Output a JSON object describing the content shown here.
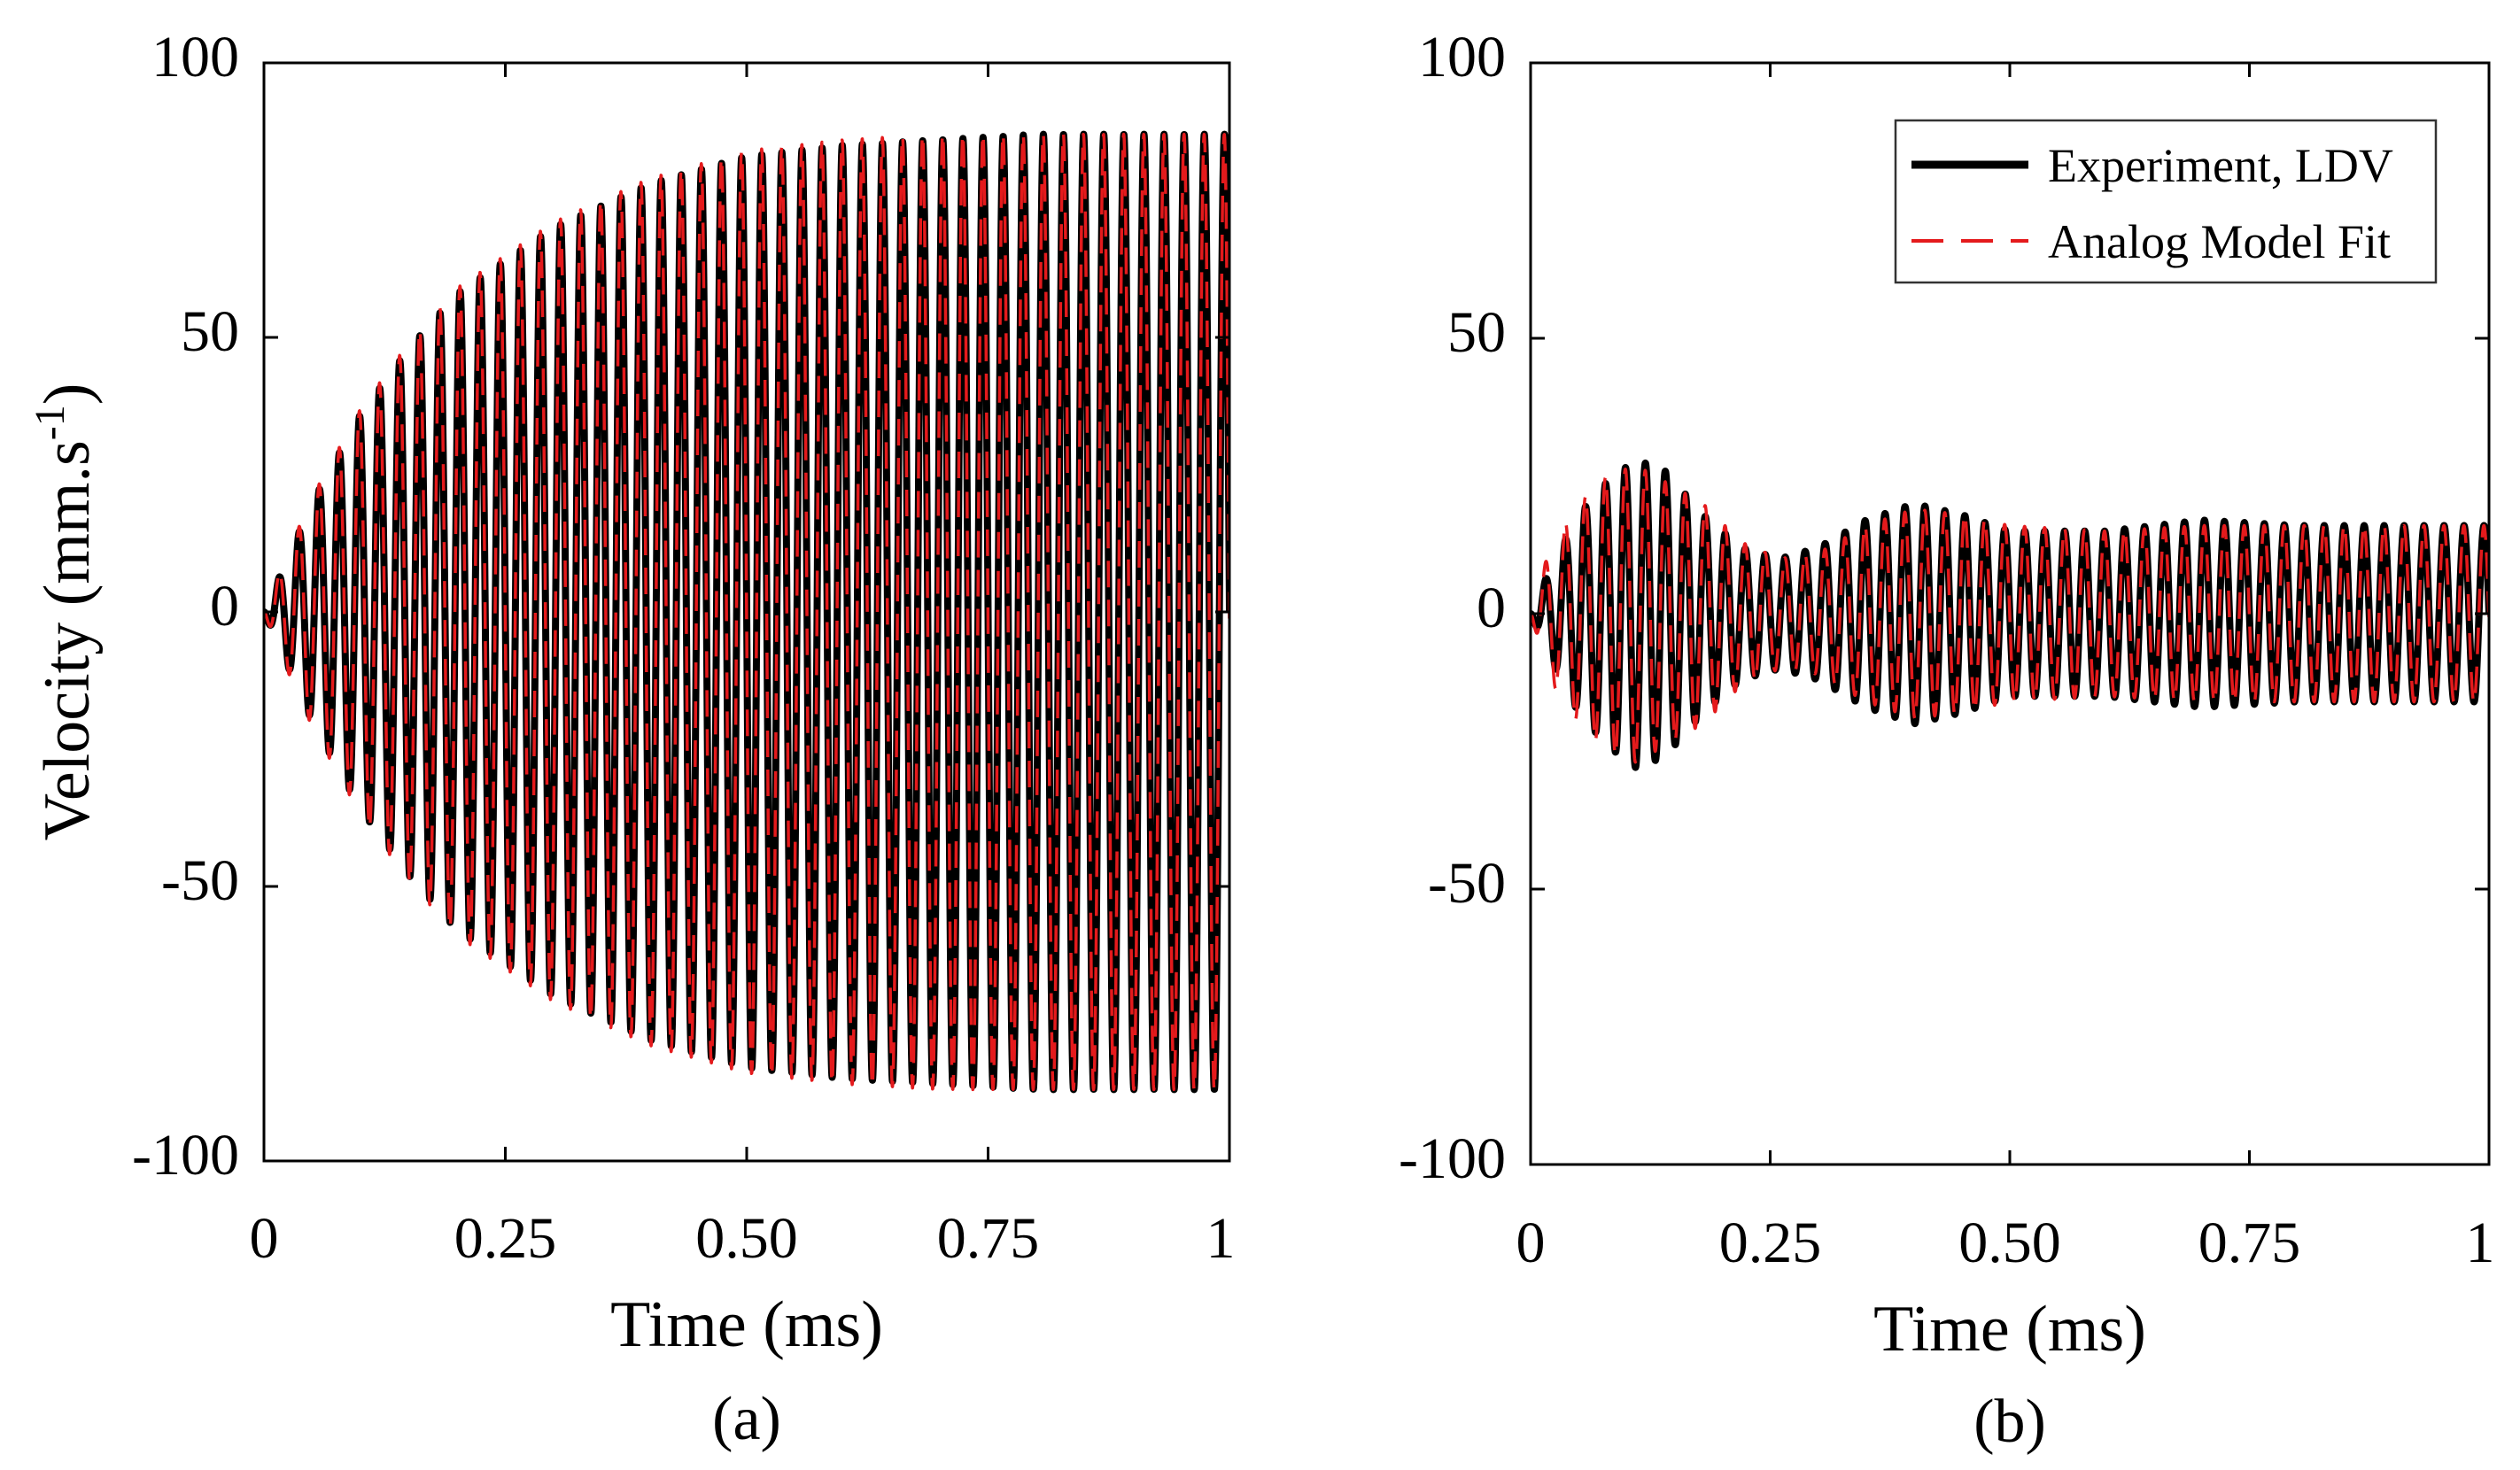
{
  "chart_data": [
    {
      "type": "line",
      "panel": "(a)",
      "caption": "(a)",
      "xlabel": "Time (ms)",
      "ylabel_main": "Velocity (mm.s",
      "ylabel_sup": "-1",
      "ylabel_close": ")",
      "xlim": [
        0,
        1
      ],
      "ylim": [
        -100,
        100
      ],
      "xticks": [
        0,
        0.25,
        0.5,
        0.75,
        1
      ],
      "xtick_labels": [
        "0",
        "0.25",
        "0.50",
        "0.75",
        "1"
      ],
      "yticks": [
        100,
        50,
        0,
        -50,
        -100
      ],
      "ytick_labels": [
        "100",
        "50",
        "0",
        "-50",
        "-100"
      ],
      "grid": false,
      "legend": null,
      "frequency_cycles_per_ms": 48,
      "series": [
        {
          "name": "Experiment, LDV",
          "color": "#000000",
          "style": "solid",
          "envelope_t": [
            0,
            0.02,
            0.05,
            0.1,
            0.15,
            0.2,
            0.25,
            0.3,
            0.4,
            0.5,
            0.6,
            0.7,
            0.8,
            0.9,
            1.0
          ],
          "envelope_amp": [
            0,
            8,
            20,
            36,
            48,
            58,
            64,
            70,
            78,
            83,
            85,
            86,
            87,
            87,
            87
          ]
        },
        {
          "name": "Analog Model Fit",
          "color": "#e41a1c",
          "style": "dashed",
          "envelope_t": [
            0,
            0.02,
            0.05,
            0.1,
            0.15,
            0.2,
            0.25,
            0.3,
            0.4,
            0.5,
            0.6,
            0.7,
            0.8,
            0.9,
            1.0
          ],
          "envelope_amp": [
            0,
            9,
            21,
            37,
            49,
            59,
            65,
            71,
            79,
            84,
            86,
            87,
            87,
            87,
            87
          ]
        }
      ]
    },
    {
      "type": "line",
      "panel": "(b)",
      "caption": "(b)",
      "xlabel": "Time (ms)",
      "xlim": [
        0,
        1
      ],
      "ylim": [
        -100,
        100
      ],
      "xticks": [
        0,
        0.25,
        0.5,
        0.75,
        1
      ],
      "xtick_labels": [
        "0",
        "0.25",
        "0.50",
        "0.75",
        "1"
      ],
      "yticks": [
        100,
        50,
        0,
        -50,
        -100
      ],
      "ytick_labels": [
        "100",
        "50",
        "0",
        "-50",
        "-100"
      ],
      "grid": false,
      "legend": {
        "position": "top-right",
        "entries": [
          "Experiment, LDV",
          "Analog Model Fit"
        ]
      },
      "frequency_cycles_per_ms": 48,
      "series": [
        {
          "name": "Experiment, LDV",
          "color": "#000000",
          "style": "solid",
          "envelope_t": [
            0,
            0.02,
            0.05,
            0.08,
            0.11,
            0.14,
            0.18,
            0.22,
            0.26,
            0.3,
            0.35,
            0.4,
            0.45,
            0.5,
            0.6,
            0.7,
            0.8,
            0.9,
            1.0
          ],
          "envelope_amp": [
            0,
            8,
            18,
            24,
            28,
            26,
            18,
            12,
            10,
            12,
            17,
            20,
            18,
            15,
            15,
            17,
            16,
            16,
            16
          ]
        },
        {
          "name": "Analog Model Fit",
          "color": "#e41a1c",
          "style": "dashed",
          "envelope_t": [
            0,
            0.02,
            0.05,
            0.08,
            0.11,
            0.14,
            0.18,
            0.22,
            0.26,
            0.3,
            0.35,
            0.4,
            0.45,
            0.5,
            0.6,
            0.7,
            0.8,
            0.9,
            1.0
          ],
          "envelope_amp": [
            0,
            12,
            20,
            25,
            27,
            24,
            20,
            13,
            10,
            11,
            16,
            19,
            18,
            16,
            15,
            16,
            16,
            16,
            16
          ]
        }
      ]
    }
  ]
}
